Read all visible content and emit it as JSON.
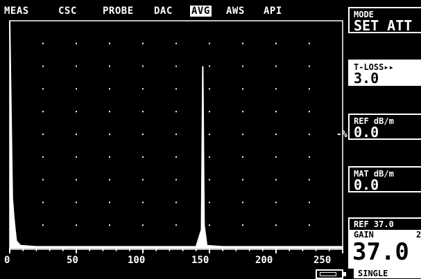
{
  "menu": {
    "items": [
      {
        "label": "MEAS",
        "active": false
      },
      {
        "label": "CSC",
        "active": false
      },
      {
        "label": "PROBE",
        "active": false
      },
      {
        "label": "DAC",
        "active": false
      },
      {
        "label": "AVG",
        "active": true
      },
      {
        "label": "AWS",
        "active": false
      },
      {
        "label": "API",
        "active": false
      }
    ]
  },
  "panels": {
    "mode": {
      "label": "MODE",
      "value": "SET ATT"
    },
    "tloss": {
      "label": "T-LOSS▸▸",
      "value": "3.0"
    },
    "ref": {
      "label": "REF dB/m",
      "value": "0.0"
    },
    "mat": {
      "label": "MAT dB/m",
      "value": "0.0"
    }
  },
  "gain": {
    "ref_label": "REF 37.0",
    "label": "GAIN",
    "right": "2",
    "value": "37.0"
  },
  "status": {
    "mode_text": "SINGLE",
    "percent_marker": "-%"
  },
  "chart_data": {
    "type": "line",
    "xlim": [
      0,
      250
    ],
    "x_ticks": [
      "0",
      "50",
      "100",
      "150",
      "200",
      "250"
    ],
    "grid": "dotted",
    "signal": [
      {
        "x": 0,
        "y": 100
      },
      {
        "x": 1,
        "y": 60
      },
      {
        "x": 2,
        "y": 22
      },
      {
        "x": 3,
        "y": 14
      },
      {
        "x": 4,
        "y": 8
      },
      {
        "x": 5,
        "y": 3
      },
      {
        "x": 8,
        "y": 1
      },
      {
        "x": 20,
        "y": 0.5
      },
      {
        "x": 140,
        "y": 0.5
      },
      {
        "x": 144,
        "y": 8
      },
      {
        "x": 145,
        "y": 80
      },
      {
        "x": 146,
        "y": 10
      },
      {
        "x": 148,
        "y": 1
      },
      {
        "x": 160,
        "y": 0.5
      },
      {
        "x": 250,
        "y": 0.5
      }
    ]
  }
}
